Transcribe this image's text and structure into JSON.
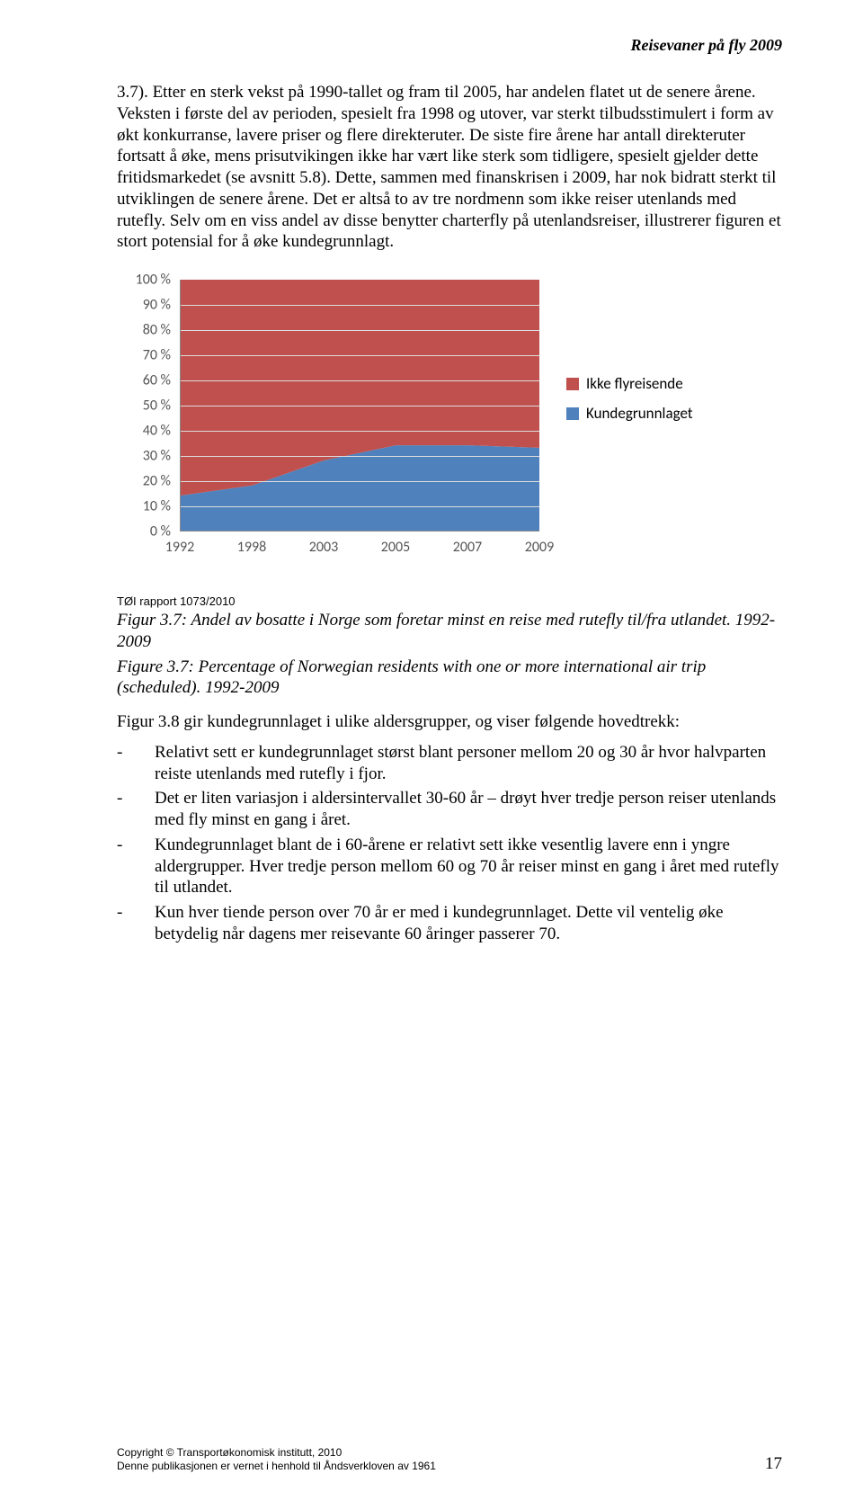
{
  "header": {
    "title": "Reisevaner på fly 2009"
  },
  "paragraphs": {
    "p1": "3.7). Etter en sterk vekst på 1990-tallet og fram til 2005, har andelen flatet ut de senere årene. Veksten i første del av perioden, spesielt fra 1998 og utover, var sterkt tilbudsstimulert i form av økt konkurranse, lavere priser og flere direkteruter. De siste fire årene har antall direkteruter fortsatt å øke, mens prisutvikingen ikke har vært like sterk som tidligere, spesielt gjelder dette fritidsmarkedet (se avsnitt 5.8). Dette, sammen med finanskrisen i 2009, har nok bidratt sterkt til utviklingen de senere årene. Det er altså to av tre nordmenn som ikke reiser utenlands med rutefly. Selv om en viss andel av disse benytter charterfly på utenlandsreiser, illustrerer figuren et stort potensial for å øke kundegrunnlagt."
  },
  "chart": {
    "type": "stacked-area",
    "categories": [
      "1992",
      "1998",
      "2003",
      "2005",
      "2007",
      "2009"
    ],
    "series": [
      {
        "name": "Kundegrunnlaget",
        "color": "#4f81bd",
        "values": [
          14,
          18,
          28,
          34,
          34,
          33
        ]
      },
      {
        "name": "Ikke flyreisende",
        "color": "#c0504d",
        "values": [
          86,
          82,
          72,
          66,
          66,
          67
        ]
      }
    ],
    "ylim": [
      0,
      100
    ],
    "ytick_step": 10,
    "y_suffix": " %",
    "background_color": "#ffffff",
    "grid_color": "#dddddd",
    "axis_color": "#888888",
    "label_fontsize": 16,
    "label_font": "Calibri",
    "legend": [
      {
        "label": "Ikke flyreisende",
        "color": "#c0504d"
      },
      {
        "label": "Kundegrunnlaget",
        "color": "#4f81bd"
      }
    ]
  },
  "source": "TØI rapport 1073/2010",
  "captions": {
    "c1": "Figur 3.7: Andel av bosatte i Norge som foretar minst en reise med rutefly til/fra utlandet. 1992-2009",
    "c2": "Figure 3.7: Percentage of Norwegian residents with one or more international air trip (scheduled). 1992-2009"
  },
  "after_caption": "Figur 3.8 gir kundegrunnlaget i ulike aldersgrupper, og viser følgende hovedtrekk:",
  "bullets": [
    "Relativt sett er kundegrunnlaget størst blant personer mellom 20 og 30 år hvor halvparten reiste utenlands med rutefly i fjor.",
    "Det er liten variasjon i aldersintervallet 30-60 år – drøyt hver tredje person reiser utenlands med fly minst en gang i året.",
    "Kundegrunnlaget blant de i 60-årene er relativt sett ikke vesentlig lavere enn i yngre aldergrupper. Hver tredje person mellom 60 og 70 år reiser minst en gang i året med rutefly til utlandet.",
    "Kun hver tiende person over 70 år er med i kundegrunnlaget. Dette vil ventelig øke betydelig når dagens mer reisevante 60 åringer passerer 70."
  ],
  "footer": {
    "line1": "Copyright © Transportøkonomisk institutt, 2010",
    "line2": "Denne publikasjonen er vernet i henhold til Åndsverkloven av 1961",
    "page": "17"
  }
}
